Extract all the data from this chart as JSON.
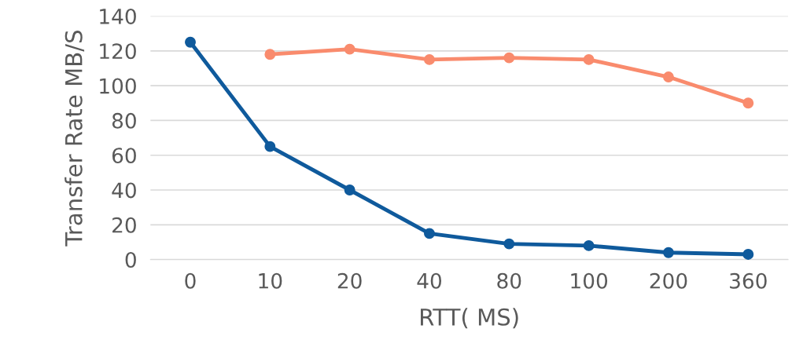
{
  "chart_data": {
    "type": "line",
    "xlabel": "RTT( MS)",
    "ylabel": "Transfer Rate MB/S",
    "categories": [
      "0",
      "10",
      "20",
      "40",
      "80",
      "100",
      "200",
      "360"
    ],
    "series": [
      {
        "color": "#0f5a9c",
        "values": [
          125,
          65,
          40,
          15,
          9,
          8,
          4,
          3
        ]
      },
      {
        "color": "#f98b6d",
        "values": [
          null,
          118,
          121,
          115,
          116,
          115,
          105,
          90
        ]
      }
    ],
    "ylim": [
      0,
      140
    ],
    "yticks": [
      0,
      20,
      40,
      60,
      80,
      100,
      120,
      140
    ],
    "grid": "y",
    "marker": "circle",
    "line_style": "solid",
    "legend": false
  }
}
